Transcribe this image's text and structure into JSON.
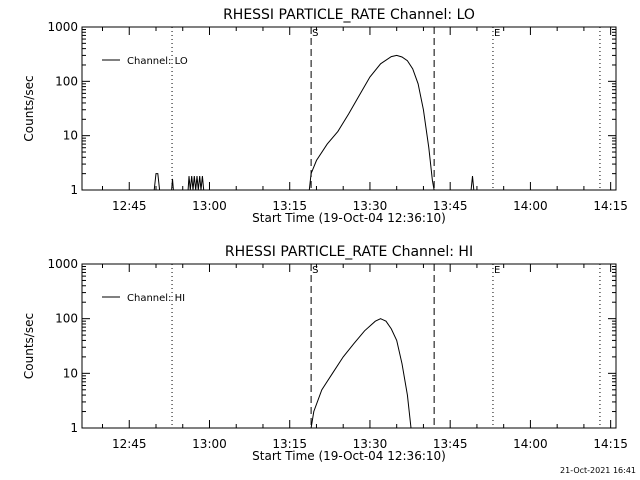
{
  "footer": {
    "timestamp": "21-Oct-2021 16:41"
  },
  "chart_data": [
    {
      "type": "line",
      "title": "RHESSI PARTICLE_RATE Channel: LO",
      "xlabel": "Start Time (19-Oct-04 12:36:10)",
      "ylabel": "Counts/sec",
      "yscale": "log",
      "ylim": [
        1,
        1000
      ],
      "y_ticks": [
        "1",
        "10",
        "100",
        "1000"
      ],
      "xlim": [
        "12:36:10",
        "14:16:00"
      ],
      "x_ticks": [
        "12:45",
        "13:00",
        "13:15",
        "13:30",
        "13:45",
        "14:00",
        "14:15"
      ],
      "grid": false,
      "legend": {
        "position": "top-left",
        "entries": [
          "Channel: LO"
        ]
      },
      "markers": [
        {
          "label": "",
          "time": "12:53:00",
          "style": "dotted"
        },
        {
          "label": "S",
          "time": "13:19:00",
          "style": "dashed"
        },
        {
          "label": "",
          "time": "13:42:00",
          "style": "dashed"
        },
        {
          "label": "E",
          "time": "13:53:00",
          "style": "dotted"
        },
        {
          "label": "",
          "time": "14:13:00",
          "style": "dotted"
        }
      ],
      "series": [
        {
          "name": "Channel: LO",
          "points": [
            [
              "12:49:40",
              1
            ],
            [
              "12:50:00",
              2
            ],
            [
              "12:50:20",
              2
            ],
            [
              "12:50:40",
              1
            ],
            [
              "12:52:55",
              1
            ],
            [
              "12:53:05",
              1.6
            ],
            [
              "12:53:15",
              1
            ],
            [
              "12:56:00",
              1
            ],
            [
              "12:56:10",
              1.8
            ],
            [
              "12:56:25",
              1
            ],
            [
              "12:56:40",
              1.8
            ],
            [
              "12:56:55",
              1
            ],
            [
              "12:57:10",
              1.8
            ],
            [
              "12:57:25",
              1
            ],
            [
              "12:57:40",
              1.8
            ],
            [
              "12:57:55",
              1
            ],
            [
              "12:58:10",
              1.8
            ],
            [
              "12:58:25",
              1
            ],
            [
              "12:58:40",
              1.8
            ],
            [
              "12:58:55",
              1
            ],
            [
              "13:18:40",
              1
            ],
            [
              "13:19:00",
              2
            ],
            [
              "13:20:00",
              3.5
            ],
            [
              "13:22:00",
              7
            ],
            [
              "13:24:00",
              12
            ],
            [
              "13:26:00",
              25
            ],
            [
              "13:28:00",
              55
            ],
            [
              "13:30:00",
              120
            ],
            [
              "13:32:00",
              210
            ],
            [
              "13:34:00",
              285
            ],
            [
              "13:35:00",
              300
            ],
            [
              "13:36:00",
              280
            ],
            [
              "13:37:00",
              240
            ],
            [
              "13:38:00",
              170
            ],
            [
              "13:39:00",
              90
            ],
            [
              "13:40:00",
              30
            ],
            [
              "13:41:00",
              6
            ],
            [
              "13:41:40",
              1.5
            ],
            [
              "13:42:00",
              1
            ],
            [
              "13:48:55",
              1
            ],
            [
              "13:49:10",
              1.8
            ],
            [
              "13:49:25",
              1
            ]
          ]
        }
      ]
    },
    {
      "type": "line",
      "title": "RHESSI PARTICLE_RATE Channel: HI",
      "xlabel": "Start Time (19-Oct-04 12:36:10)",
      "ylabel": "Counts/sec",
      "yscale": "log",
      "ylim": [
        1,
        1000
      ],
      "y_ticks": [
        "1",
        "10",
        "100",
        "1000"
      ],
      "xlim": [
        "12:36:10",
        "14:16:00"
      ],
      "x_ticks": [
        "12:45",
        "13:00",
        "13:15",
        "13:30",
        "13:45",
        "14:00",
        "14:15"
      ],
      "grid": false,
      "legend": {
        "position": "top-left",
        "entries": [
          "Channel: HI"
        ]
      },
      "markers": [
        {
          "label": "",
          "time": "12:53:00",
          "style": "dotted"
        },
        {
          "label": "S",
          "time": "13:19:00",
          "style": "dashed"
        },
        {
          "label": "",
          "time": "13:42:00",
          "style": "dashed"
        },
        {
          "label": "E",
          "time": "13:53:00",
          "style": "dotted"
        },
        {
          "label": "",
          "time": "14:13:00",
          "style": "dotted"
        }
      ],
      "series": [
        {
          "name": "Channel: HI",
          "points": [
            [
              "13:19:00",
              1
            ],
            [
              "13:19:30",
              2
            ],
            [
              "13:21:00",
              5
            ],
            [
              "13:23:00",
              10
            ],
            [
              "13:25:00",
              20
            ],
            [
              "13:27:00",
              35
            ],
            [
              "13:29:00",
              60
            ],
            [
              "13:31:00",
              90
            ],
            [
              "13:32:00",
              100
            ],
            [
              "13:33:00",
              90
            ],
            [
              "13:34:00",
              65
            ],
            [
              "13:35:00",
              40
            ],
            [
              "13:36:00",
              15
            ],
            [
              "13:37:00",
              4
            ],
            [
              "13:37:40",
              1
            ]
          ]
        }
      ]
    }
  ]
}
